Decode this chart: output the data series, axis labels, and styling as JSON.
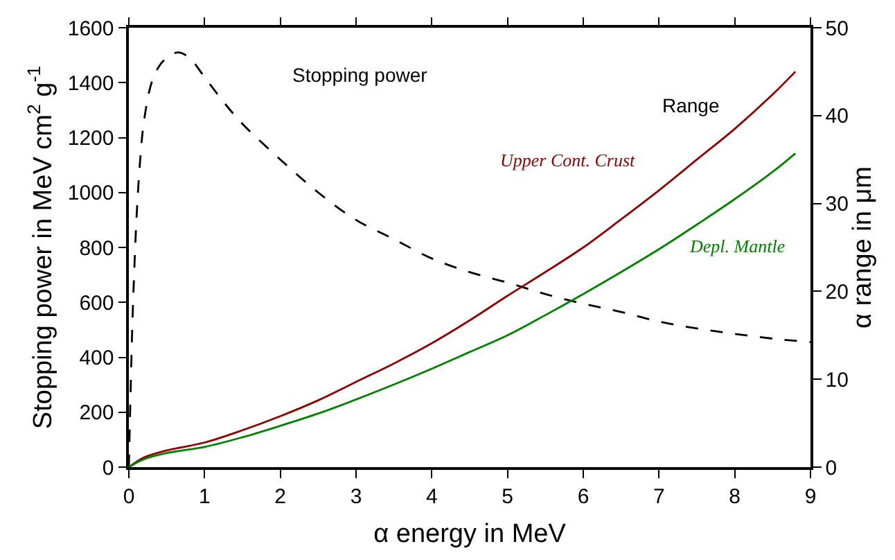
{
  "chart_data": {
    "type": "line",
    "xlabel": "α energy in MeV",
    "ylabel": "Stopping power in MeV cm$^{2}$ g$^{-1}$",
    "y2label": "α range in μm",
    "xlim": [
      0,
      9
    ],
    "xticks": [
      0,
      1,
      2,
      3,
      4,
      5,
      6,
      7,
      8,
      9
    ],
    "ylim": [
      0,
      1600
    ],
    "yticks": [
      0,
      200,
      400,
      600,
      800,
      1000,
      1200,
      1400,
      1600
    ],
    "y2lim": [
      0,
      50
    ],
    "y2ticks": [
      0,
      10,
      20,
      30,
      40,
      50
    ],
    "legend": false,
    "series": [
      {
        "color": "#000000",
        "line_style": "dashed",
        "x": [
          0,
          0.03,
          0.05,
          0.1,
          0.15,
          0.2,
          0.3,
          0.4,
          0.5,
          0.65,
          0.8,
          1,
          1.25,
          1.5,
          2,
          2.5,
          3,
          3.5,
          4,
          4.5,
          5,
          5.5,
          6,
          6.5,
          7,
          7.5,
          8,
          8.5,
          9
        ],
        "values": [
          0,
          350,
          550,
          900,
          1120,
          1260,
          1400,
          1460,
          1490,
          1510,
          1490,
          1420,
          1330,
          1250,
          1120,
          1000,
          900,
          830,
          760,
          710,
          672,
          630,
          595,
          565,
          530,
          505,
          485,
          468,
          455
        ]
      },
      {
        "name": "Upper Cont. Crust",
        "color": "#8b0000",
        "axis": "y2",
        "x": [
          0,
          0.1,
          0.2,
          0.5,
          1,
          1.5,
          2,
          2.5,
          3,
          3.5,
          4,
          4.5,
          5,
          5.5,
          6,
          6.5,
          7,
          7.5,
          8,
          8.5,
          8.8
        ],
        "values": [
          0,
          0.6,
          1.1,
          1.9,
          2.8,
          4.2,
          5.8,
          7.6,
          9.7,
          11.8,
          14.1,
          16.7,
          19.5,
          22.2,
          25,
          28.2,
          31.5,
          35,
          38.5,
          42.4,
          45
        ]
      },
      {
        "name": "Depl. Mantle",
        "color": "#008000",
        "axis": "y2",
        "x": [
          0,
          0.1,
          0.2,
          0.5,
          1,
          1.5,
          2,
          2.5,
          3,
          3.5,
          4,
          4.5,
          5,
          5.5,
          6,
          6.5,
          7,
          7.5,
          8,
          8.5,
          8.8
        ],
        "values": [
          0,
          0.5,
          0.9,
          1.6,
          2.3,
          3.4,
          4.7,
          6.1,
          7.7,
          9.4,
          11.2,
          13.1,
          15,
          17.3,
          19.7,
          22.2,
          24.8,
          27.6,
          30.5,
          33.6,
          35.7
        ]
      }
    ],
    "annotations": [
      "Stopping power",
      "Range"
    ]
  }
}
